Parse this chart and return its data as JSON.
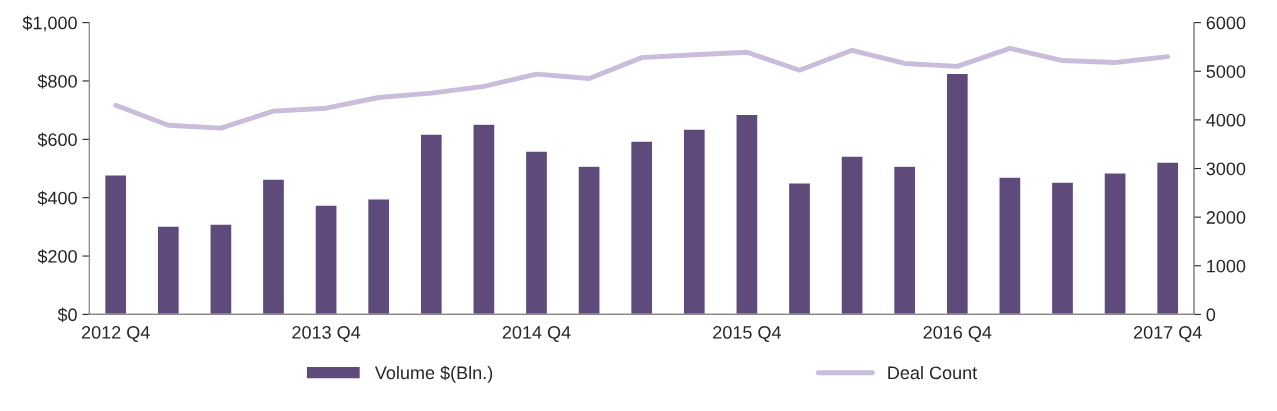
{
  "chart_data": {
    "type": "bar",
    "categories": [
      "2012 Q4",
      null,
      null,
      null,
      "2013 Q4",
      null,
      null,
      null,
      "2014 Q4",
      null,
      null,
      null,
      "2015 Q4",
      null,
      null,
      null,
      "2016 Q4",
      null,
      null,
      null,
      "2017 Q4"
    ],
    "series": [
      {
        "name": "Volume $(Bln.)",
        "color": "#5f4b7b",
        "values": [
          478,
          303,
          310,
          464,
          375,
          396,
          618,
          652,
          560,
          508,
          594,
          635,
          686,
          451,
          543,
          508,
          826,
          471,
          454,
          485,
          522
        ]
      },
      {
        "name": "Deal Count",
        "type": "line",
        "axis": "y2",
        "color": "#c8bedb",
        "values": [
          4300,
          3890,
          3830,
          4180,
          4240,
          4460,
          4550,
          4690,
          4940,
          4850,
          5280,
          5340,
          5390,
          5020,
          5430,
          5160,
          5100,
          5470,
          5220,
          5180,
          5300
        ]
      }
    ],
    "ylim": [
      0,
      1000
    ],
    "yticks": [
      {
        "value": 0,
        "label": "$0"
      },
      {
        "value": 200,
        "label": "$200"
      },
      {
        "value": 400,
        "label": "$400"
      },
      {
        "value": 600,
        "label": "$600"
      },
      {
        "value": 800,
        "label": "$800"
      },
      {
        "value": 1000,
        "label": "$1,000"
      }
    ],
    "y2lim": [
      0,
      6000
    ],
    "y2ticks": [
      0,
      1000,
      2000,
      3000,
      4000,
      5000,
      6000
    ],
    "grid": false,
    "legend": "bottom",
    "marker": "none"
  }
}
